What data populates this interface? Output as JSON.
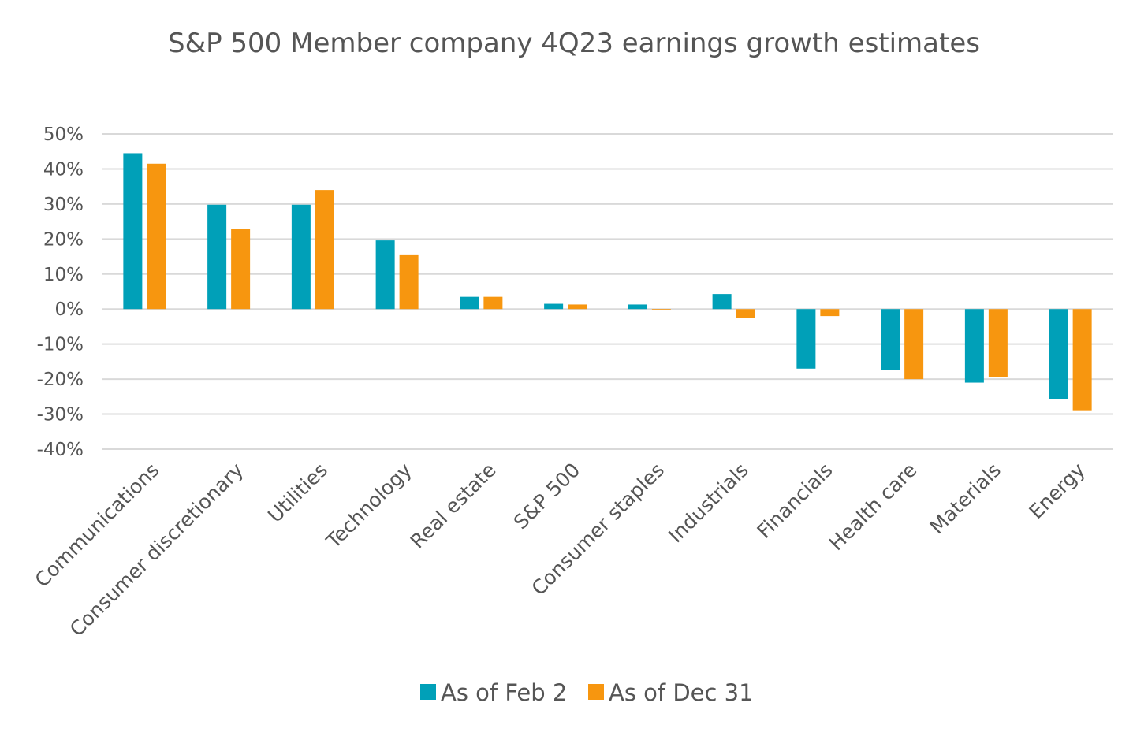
{
  "chart_data": {
    "type": "bar",
    "title": "S&P 500 Member company 4Q23 earnings growth estimates",
    "xlabel": "",
    "ylabel": "",
    "ylim": [
      -40,
      50
    ],
    "yticks": [
      50,
      40,
      30,
      20,
      10,
      0,
      -10,
      -20,
      -30,
      -40
    ],
    "ytick_labels": [
      "50%",
      "40%",
      "30%",
      "20%",
      "10%",
      "0%",
      "-10%",
      "-20%",
      "-30%",
      "-40%"
    ],
    "grid": true,
    "legend_position": "bottom",
    "categories": [
      "Communications",
      "Consumer discretionary",
      "Utilities",
      "Technology",
      "Real estate",
      "S&P 500",
      "Consumer staples",
      "Industrials",
      "Financials",
      "Health care",
      "Materials",
      "Energy"
    ],
    "series": [
      {
        "name": "As of Feb 2",
        "color": "#00a0b8",
        "values": [
          44.5,
          29.8,
          29.8,
          19.6,
          3.5,
          1.5,
          1.3,
          4.3,
          -17.0,
          -17.4,
          -21.0,
          -25.6
        ]
      },
      {
        "name": "As of Dec 31",
        "color": "#f7960f",
        "values": [
          41.5,
          22.8,
          34.0,
          15.6,
          3.5,
          1.3,
          -0.3,
          -2.5,
          -2.0,
          -20.0,
          -19.3,
          -28.9
        ]
      }
    ]
  }
}
